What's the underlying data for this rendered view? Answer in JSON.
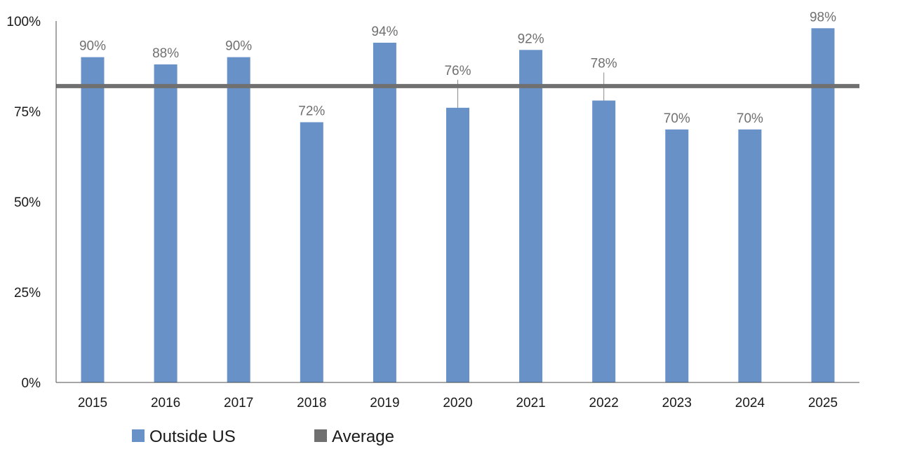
{
  "chart_data": {
    "type": "bar",
    "categories": [
      "2015",
      "2016",
      "2017",
      "2018",
      "2019",
      "2020",
      "2021",
      "2022",
      "2023",
      "2024",
      "2025"
    ],
    "series": [
      {
        "name": "Outside US",
        "values": [
          90,
          88,
          90,
          72,
          94,
          76,
          92,
          78,
          70,
          70,
          98
        ],
        "data_labels": [
          "90%",
          "88%",
          "90%",
          "72%",
          "94%",
          "76%",
          "92%",
          "78%",
          "70%",
          "70%",
          "98%"
        ],
        "color": "#6891c8"
      }
    ],
    "average": {
      "name": "Average",
      "value": 82,
      "color": "#707070"
    },
    "ylim": [
      0,
      100
    ],
    "yticks": [
      0,
      25,
      50,
      75,
      100
    ],
    "ytick_labels": [
      "0%",
      "25%",
      "50%",
      "75%",
      "100%"
    ],
    "grid": false,
    "legend": {
      "position": "bottom-left",
      "items": [
        {
          "label": "Outside US",
          "color": "#6891c8"
        },
        {
          "label": "Average",
          "color": "#707070"
        }
      ]
    },
    "title": "",
    "xlabel": "",
    "ylabel": ""
  }
}
